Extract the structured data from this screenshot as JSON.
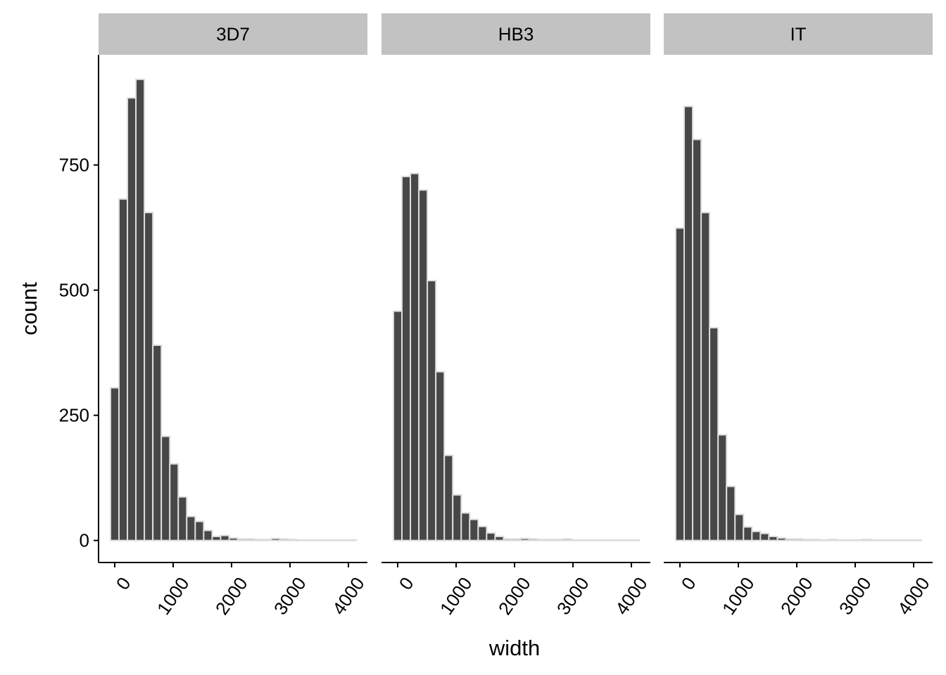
{
  "chart_data": [
    {
      "type": "histogram",
      "title": "3D7",
      "ylabel": "count",
      "bins": [
        -72.5,
        72.5,
        217.5,
        362.5,
        507.5,
        652.5,
        797.5,
        942.5,
        1087.5,
        1232.5,
        1377.5,
        1522.5,
        1667.5,
        1812.5,
        1957.5,
        2102.5,
        2247.5,
        2392.5,
        2537.5,
        2682.5,
        2827.5,
        2972.5,
        3117.5,
        3262.5,
        3407.5,
        3552.5,
        3697.5,
        3842.5,
        3987.5,
        4132.5
      ],
      "values": [
        305,
        682,
        884,
        921,
        655,
        390,
        208,
        153,
        87,
        48,
        38,
        20,
        8,
        10,
        5,
        3,
        3,
        2,
        2,
        4,
        3,
        2,
        1,
        1,
        1,
        1,
        1,
        1,
        1
      ],
      "color": "#474747",
      "edgecolor": "#dcdcdc",
      "xlim": [
        -277,
        4325
      ],
      "xticks": [
        0,
        1000,
        2000,
        3000,
        4000
      ],
      "ylim": [
        -44,
        970
      ],
      "yticks": [
        0,
        250,
        500,
        750
      ]
    },
    {
      "type": "histogram",
      "title": "HB3",
      "xlabel": "width",
      "bins": [
        -72.5,
        72.5,
        217.5,
        362.5,
        507.5,
        652.5,
        797.5,
        942.5,
        1087.5,
        1232.5,
        1377.5,
        1522.5,
        1667.5,
        1812.5,
        1957.5,
        2102.5,
        2247.5,
        2392.5,
        2537.5,
        2682.5,
        2827.5,
        2972.5,
        3117.5,
        3262.5,
        3407.5,
        3552.5,
        3697.5,
        3842.5,
        3987.5,
        4132.5
      ],
      "values": [
        458,
        727,
        733,
        700,
        519,
        337,
        170,
        91,
        55,
        42,
        28,
        15,
        8,
        3,
        3,
        4,
        3,
        2,
        2,
        2,
        3,
        1,
        1,
        1,
        1,
        1,
        1,
        1,
        1
      ],
      "color": "#474747",
      "edgecolor": "#dcdcdc",
      "xlim": [
        -277,
        4325
      ],
      "xticks": [
        0,
        1000,
        2000,
        3000,
        4000
      ],
      "ylim": [
        -44,
        970
      ]
    },
    {
      "type": "histogram",
      "title": "IT",
      "bins": [
        -72.5,
        72.5,
        217.5,
        362.5,
        507.5,
        652.5,
        797.5,
        942.5,
        1087.5,
        1232.5,
        1377.5,
        1522.5,
        1667.5,
        1812.5,
        1957.5,
        2102.5,
        2247.5,
        2392.5,
        2537.5,
        2682.5,
        2827.5,
        2972.5,
        3117.5,
        3262.5,
        3407.5,
        3552.5,
        3697.5,
        3842.5,
        3987.5,
        4132.5
      ],
      "values": [
        624,
        867,
        801,
        655,
        425,
        211,
        108,
        52,
        27,
        18,
        14,
        8,
        5,
        3,
        3,
        2,
        2,
        1,
        2,
        1,
        1,
        1,
        2,
        1,
        1,
        1,
        1,
        1,
        1
      ],
      "color": "#474747",
      "edgecolor": "#dcdcdc",
      "xlim": [
        -277,
        4325
      ],
      "xticks": [
        0,
        1000,
        2000,
        3000,
        4000
      ],
      "ylim": [
        -44,
        970
      ]
    }
  ]
}
